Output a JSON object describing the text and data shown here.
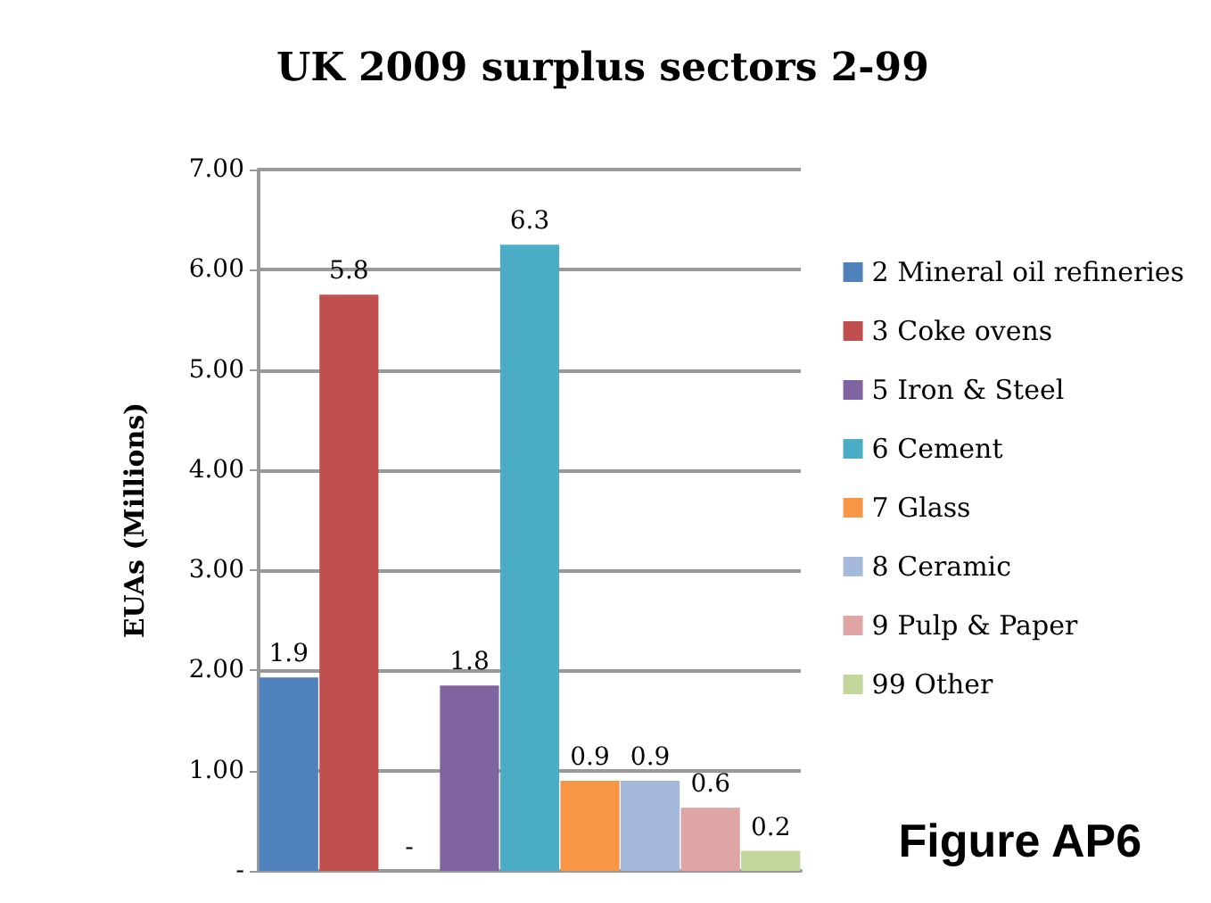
{
  "chart_data": {
    "type": "bar",
    "title": "UK 2009 surplus sectors 2-99",
    "ylabel": "EUAs (Millions)",
    "categories": [
      null,
      null,
      null,
      null,
      null,
      null,
      null,
      null,
      null
    ],
    "series": [
      {
        "name": "2 Mineral oil refineries",
        "color": "#4f81bd",
        "values": [
          1.93,
          null,
          null,
          null,
          null,
          null,
          null,
          null,
          null
        ],
        "value_labels": [
          "1.9",
          null,
          null,
          null,
          null,
          null,
          null,
          null,
          null
        ]
      },
      {
        "name": "3 Coke ovens",
        "color": "#c0504d",
        "values": [
          null,
          5.75,
          null,
          null,
          null,
          null,
          null,
          null,
          null
        ],
        "value_labels": [
          null,
          "5.8",
          null,
          null,
          null,
          null,
          null,
          null,
          null
        ]
      },
      {
        "values": [
          null,
          null,
          0,
          null,
          null,
          null,
          null,
          null,
          null
        ],
        "value_labels": [
          null,
          null,
          "-",
          null,
          null,
          null,
          null,
          null,
          null
        ]
      },
      {
        "name": "5 Iron & Steel",
        "color": "#8064a2",
        "values": [
          null,
          null,
          null,
          1.85,
          null,
          null,
          null,
          null,
          null
        ],
        "value_labels": [
          null,
          null,
          null,
          "1.8",
          null,
          null,
          null,
          null,
          null
        ]
      },
      {
        "name": "6 Cement",
        "color": "#4bacc6",
        "values": [
          null,
          null,
          null,
          null,
          6.25,
          null,
          null,
          null,
          null
        ],
        "value_labels": [
          null,
          null,
          null,
          null,
          "6.3",
          null,
          null,
          null,
          null
        ]
      },
      {
        "name": "7 Glass",
        "color": "#f79646",
        "values": [
          null,
          null,
          null,
          null,
          null,
          0.9,
          null,
          null,
          null
        ],
        "value_labels": [
          null,
          null,
          null,
          null,
          null,
          "0.9",
          null,
          null,
          null
        ]
      },
      {
        "name": "8 Ceramic",
        "color": "#a5b9dc",
        "values": [
          null,
          null,
          null,
          null,
          null,
          null,
          0.9,
          null,
          null
        ],
        "value_labels": [
          null,
          null,
          null,
          null,
          null,
          null,
          "0.9",
          null,
          null
        ]
      },
      {
        "name": "9 Pulp & Paper",
        "color": "#dea5a4",
        "values": [
          null,
          null,
          null,
          null,
          null,
          null,
          null,
          0.63,
          null
        ],
        "value_labels": [
          null,
          null,
          null,
          null,
          null,
          null,
          null,
          "0.6",
          null
        ]
      },
      {
        "name": "99 Other",
        "color": "#c3d69b",
        "values": [
          null,
          null,
          null,
          null,
          null,
          null,
          null,
          null,
          0.2
        ],
        "value_labels": [
          null,
          null,
          null,
          null,
          null,
          null,
          null,
          null,
          "0.2"
        ]
      }
    ],
    "ylim": [
      0,
      7
    ],
    "yticks": [
      {
        "value": 0,
        "label": "-"
      },
      {
        "value": 1,
        "label": "1.00"
      },
      {
        "value": 2,
        "label": "2.00"
      },
      {
        "value": 3,
        "label": "3.00"
      },
      {
        "value": 4,
        "label": "4.00"
      },
      {
        "value": 5,
        "label": "5.00"
      },
      {
        "value": 6,
        "label": "6.00"
      },
      {
        "value": 7,
        "label": "7.00"
      }
    ],
    "grid": "y",
    "legend": "right",
    "annotations": [
      "Figure AP6"
    ]
  }
}
